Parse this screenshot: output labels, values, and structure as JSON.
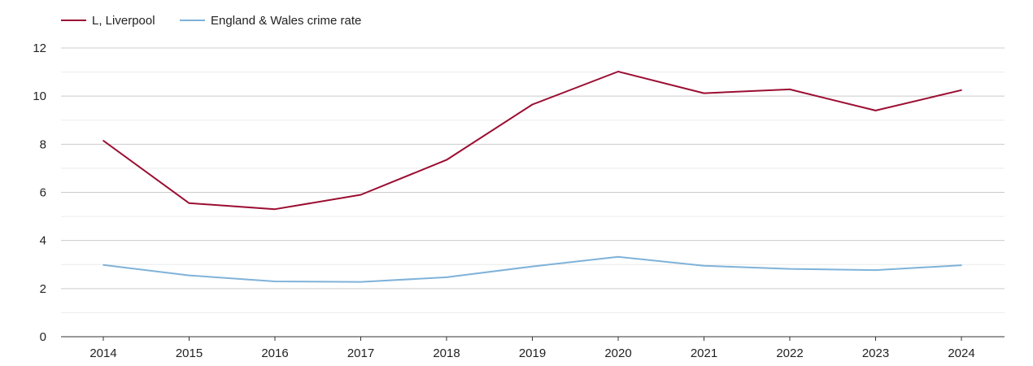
{
  "chart_data": {
    "type": "line",
    "title": "",
    "xlabel": "",
    "ylabel": "",
    "x": [
      "2014",
      "2015",
      "2016",
      "2017",
      "2018",
      "2019",
      "2020",
      "2021",
      "2022",
      "2023",
      "2024"
    ],
    "ylim": [
      0,
      12
    ],
    "yticks": [
      "0",
      "2",
      "4",
      "6",
      "8",
      "10",
      "12"
    ],
    "grid": true,
    "legend_position": "top-left",
    "series": [
      {
        "name": "L, Liverpool",
        "color": "#9b0d32",
        "values": [
          8.15,
          5.55,
          5.3,
          5.9,
          7.35,
          9.65,
          11.02,
          10.12,
          10.28,
          9.4,
          10.25
        ]
      },
      {
        "name": "England & Wales crime rate",
        "color": "#7fb2d9",
        "values": [
          2.98,
          2.55,
          2.3,
          2.28,
          2.47,
          2.92,
          3.32,
          2.95,
          2.82,
          2.77,
          2.97
        ]
      }
    ]
  }
}
